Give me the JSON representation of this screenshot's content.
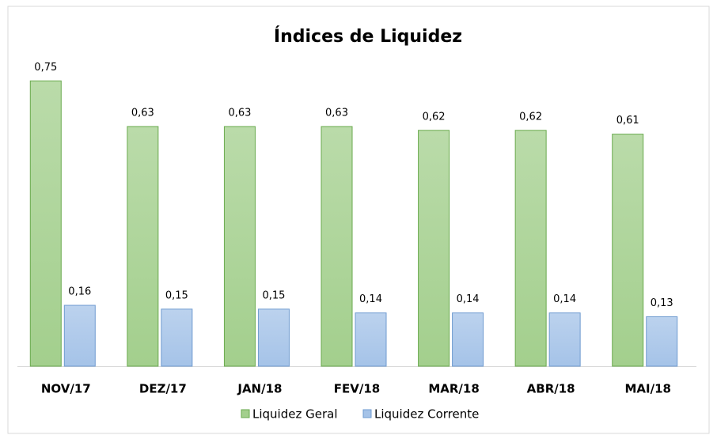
{
  "chart_data": {
    "type": "bar",
    "title": "Índices de Liquidez",
    "categories": [
      "NOV/17",
      "DEZ/17",
      "JAN/18",
      "FEV/18",
      "MAR/18",
      "ABR/18",
      "MAI/18"
    ],
    "series": [
      {
        "name": "Liquidez Geral",
        "color": "#a3cf8d",
        "values": [
          0.75,
          0.63,
          0.63,
          0.63,
          0.62,
          0.62,
          0.61
        ],
        "value_labels": [
          "0,75",
          "0,63",
          "0,63",
          "0,63",
          "0,62",
          "0,62",
          "0,61"
        ]
      },
      {
        "name": "Liquidez Corrente",
        "color": "#a5c3e8",
        "values": [
          0.16,
          0.15,
          0.15,
          0.14,
          0.14,
          0.14,
          0.13
        ],
        "value_labels": [
          "0,16",
          "0,15",
          "0,15",
          "0,14",
          "0,14",
          "0,14",
          "0,13"
        ]
      }
    ],
    "legend": "bottom"
  }
}
